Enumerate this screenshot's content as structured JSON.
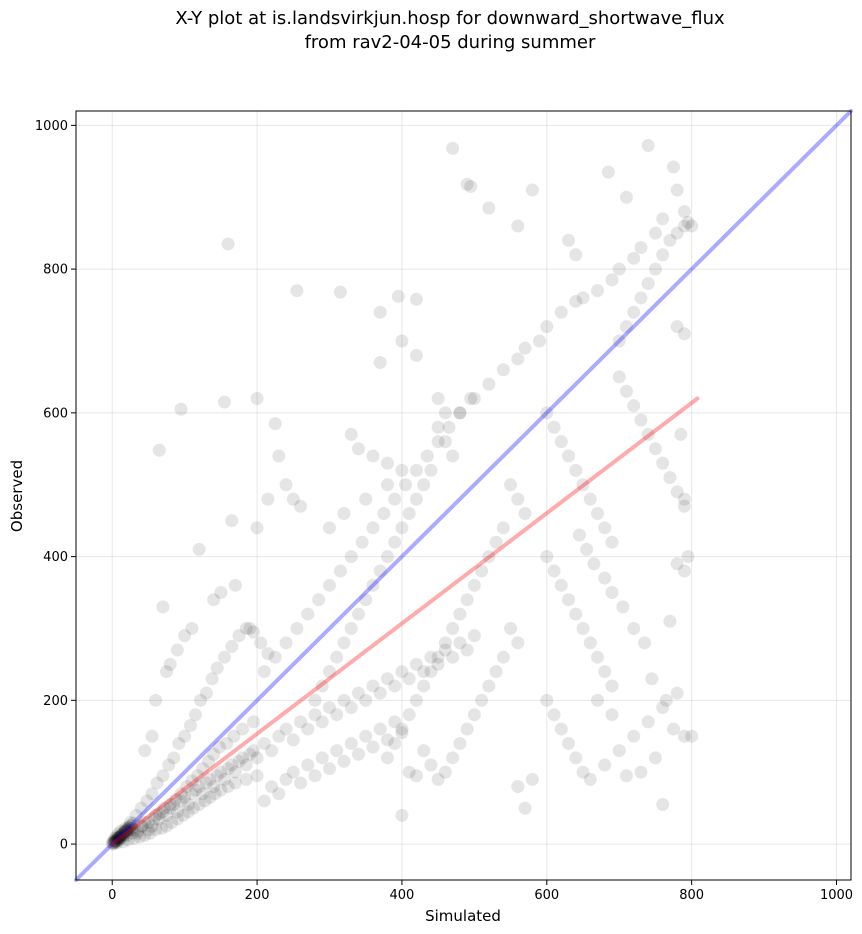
{
  "chart_data": {
    "type": "scatter",
    "title_line1": "X-Y plot at is.landsvirkjun.hosp for downward_shortwave_flux",
    "title_line2": "from rav2-04-05 during summer",
    "xlabel": "Simulated",
    "ylabel": "Observed",
    "xlim": [
      -50,
      1020
    ],
    "ylim": [
      -50,
      1020
    ],
    "xticks": [
      "0",
      "200",
      "400",
      "600",
      "800",
      "1000"
    ],
    "yticks": [
      "0",
      "200",
      "400",
      "600",
      "800",
      "1000"
    ],
    "grid": true,
    "point_color": "#000000",
    "point_opacity": 0.1,
    "reference_line": {
      "name": "1:1",
      "color": "#0000ff",
      "x": [
        -50,
        1020
      ],
      "y": [
        -50,
        1020
      ]
    },
    "regression_line": {
      "color": "#ff0000",
      "x": [
        0,
        808
      ],
      "y": [
        0,
        620
      ]
    },
    "points": [
      [
        0,
        2
      ],
      [
        1,
        0
      ],
      [
        2,
        5
      ],
      [
        3,
        1
      ],
      [
        4,
        8
      ],
      [
        5,
        3
      ],
      [
        6,
        10
      ],
      [
        7,
        2
      ],
      [
        8,
        14
      ],
      [
        10,
        6
      ],
      [
        12,
        18
      ],
      [
        14,
        9
      ],
      [
        15,
        3
      ],
      [
        18,
        22
      ],
      [
        20,
        12
      ],
      [
        22,
        6
      ],
      [
        25,
        30
      ],
      [
        28,
        15
      ],
      [
        30,
        8
      ],
      [
        33,
        40
      ],
      [
        35,
        18
      ],
      [
        38,
        10
      ],
      [
        40,
        50
      ],
      [
        42,
        25
      ],
      [
        45,
        12
      ],
      [
        48,
        60
      ],
      [
        50,
        30
      ],
      [
        52,
        15
      ],
      [
        55,
        70
      ],
      [
        58,
        35
      ],
      [
        60,
        20
      ],
      [
        62,
        85
      ],
      [
        65,
        42
      ],
      [
        68,
        22
      ],
      [
        70,
        95
      ],
      [
        72,
        50
      ],
      [
        75,
        25
      ],
      [
        78,
        110
      ],
      [
        80,
        55
      ],
      [
        82,
        30
      ],
      [
        85,
        120
      ],
      [
        88,
        62
      ],
      [
        90,
        35
      ],
      [
        92,
        140
      ],
      [
        95,
        70
      ],
      [
        98,
        40
      ],
      [
        100,
        150
      ],
      [
        103,
        80
      ],
      [
        105,
        45
      ],
      [
        108,
        165
      ],
      [
        110,
        88
      ],
      [
        112,
        50
      ],
      [
        115,
        180
      ],
      [
        118,
        95
      ],
      [
        120,
        55
      ],
      [
        122,
        200
      ],
      [
        125,
        105
      ],
      [
        128,
        60
      ],
      [
        130,
        210
      ],
      [
        133,
        115
      ],
      [
        135,
        65
      ],
      [
        138,
        230
      ],
      [
        140,
        125
      ],
      [
        142,
        70
      ],
      [
        145,
        245
      ],
      [
        148,
        135
      ],
      [
        150,
        75
      ],
      [
        155,
        260
      ],
      [
        158,
        140
      ],
      [
        160,
        80
      ],
      [
        165,
        275
      ],
      [
        168,
        150
      ],
      [
        170,
        85
      ],
      [
        175,
        290
      ],
      [
        180,
        160
      ],
      [
        185,
        90
      ],
      [
        190,
        300
      ],
      [
        195,
        170
      ],
      [
        200,
        95
      ],
      [
        30,
        20
      ],
      [
        35,
        15
      ],
      [
        40,
        25
      ],
      [
        45,
        30
      ],
      [
        50,
        20
      ],
      [
        55,
        25
      ],
      [
        60,
        40
      ],
      [
        65,
        35
      ],
      [
        70,
        45
      ],
      [
        75,
        40
      ],
      [
        80,
        50
      ],
      [
        85,
        55
      ],
      [
        90,
        45
      ],
      [
        95,
        60
      ],
      [
        100,
        65
      ],
      [
        105,
        55
      ],
      [
        110,
        70
      ],
      [
        115,
        75
      ],
      [
        120,
        80
      ],
      [
        125,
        70
      ],
      [
        130,
        85
      ],
      [
        135,
        90
      ],
      [
        140,
        80
      ],
      [
        145,
        95
      ],
      [
        150,
        100
      ],
      [
        155,
        90
      ],
      [
        160,
        105
      ],
      [
        165,
        110
      ],
      [
        170,
        100
      ],
      [
        175,
        115
      ],
      [
        180,
        120
      ],
      [
        185,
        110
      ],
      [
        190,
        125
      ],
      [
        195,
        130
      ],
      [
        200,
        120
      ],
      [
        210,
        140
      ],
      [
        220,
        130
      ],
      [
        230,
        150
      ],
      [
        240,
        160
      ],
      [
        250,
        145
      ],
      [
        260,
        170
      ],
      [
        270,
        160
      ],
      [
        280,
        180
      ],
      [
        290,
        170
      ],
      [
        300,
        190
      ],
      [
        310,
        180
      ],
      [
        320,
        200
      ],
      [
        330,
        190
      ],
      [
        340,
        210
      ],
      [
        350,
        200
      ],
      [
        360,
        220
      ],
      [
        370,
        210
      ],
      [
        380,
        230
      ],
      [
        390,
        220
      ],
      [
        400,
        240
      ],
      [
        410,
        230
      ],
      [
        420,
        250
      ],
      [
        430,
        240
      ],
      [
        440,
        260
      ],
      [
        450,
        250
      ],
      [
        460,
        270
      ],
      [
        470,
        260
      ],
      [
        480,
        280
      ],
      [
        490,
        270
      ],
      [
        500,
        290
      ],
      [
        210,
        60
      ],
      [
        220,
        80
      ],
      [
        230,
        70
      ],
      [
        240,
        90
      ],
      [
        250,
        100
      ],
      [
        260,
        85
      ],
      [
        270,
        110
      ],
      [
        280,
        95
      ],
      [
        290,
        120
      ],
      [
        300,
        105
      ],
      [
        310,
        130
      ],
      [
        320,
        115
      ],
      [
        330,
        140
      ],
      [
        340,
        125
      ],
      [
        350,
        150
      ],
      [
        360,
        135
      ],
      [
        370,
        160
      ],
      [
        380,
        145
      ],
      [
        390,
        170
      ],
      [
        400,
        155
      ],
      [
        210,
        240
      ],
      [
        225,
        260
      ],
      [
        240,
        280
      ],
      [
        255,
        300
      ],
      [
        270,
        320
      ],
      [
        285,
        340
      ],
      [
        300,
        360
      ],
      [
        315,
        380
      ],
      [
        330,
        400
      ],
      [
        345,
        420
      ],
      [
        360,
        440
      ],
      [
        375,
        460
      ],
      [
        390,
        480
      ],
      [
        405,
        500
      ],
      [
        420,
        520
      ],
      [
        435,
        540
      ],
      [
        450,
        560
      ],
      [
        465,
        580
      ],
      [
        480,
        600
      ],
      [
        495,
        620
      ],
      [
        160,
        835
      ],
      [
        95,
        605
      ],
      [
        65,
        548
      ],
      [
        155,
        615
      ],
      [
        200,
        620
      ],
      [
        255,
        770
      ],
      [
        315,
        768
      ],
      [
        395,
        762
      ],
      [
        420,
        758
      ],
      [
        470,
        968
      ],
      [
        490,
        918
      ],
      [
        495,
        915
      ],
      [
        520,
        885
      ],
      [
        580,
        910
      ],
      [
        560,
        860
      ],
      [
        630,
        840
      ],
      [
        640,
        820
      ],
      [
        685,
        935
      ],
      [
        710,
        900
      ],
      [
        740,
        972
      ],
      [
        775,
        942
      ],
      [
        780,
        910
      ],
      [
        790,
        880
      ],
      [
        795,
        865
      ],
      [
        800,
        860
      ],
      [
        760,
        870
      ],
      [
        750,
        850
      ],
      [
        730,
        830
      ],
      [
        720,
        815
      ],
      [
        700,
        800
      ],
      [
        690,
        785
      ],
      [
        670,
        770
      ],
      [
        650,
        760
      ],
      [
        640,
        755
      ],
      [
        620,
        740
      ],
      [
        600,
        720
      ],
      [
        590,
        700
      ],
      [
        570,
        690
      ],
      [
        560,
        675
      ],
      [
        540,
        660
      ],
      [
        520,
        640
      ],
      [
        500,
        620
      ],
      [
        480,
        600
      ],
      [
        700,
        700
      ],
      [
        710,
        720
      ],
      [
        720,
        740
      ],
      [
        730,
        760
      ],
      [
        740,
        780
      ],
      [
        750,
        800
      ],
      [
        760,
        820
      ],
      [
        770,
        840
      ],
      [
        780,
        850
      ],
      [
        790,
        860
      ],
      [
        700,
        650
      ],
      [
        710,
        630
      ],
      [
        720,
        610
      ],
      [
        730,
        590
      ],
      [
        740,
        570
      ],
      [
        750,
        550
      ],
      [
        760,
        530
      ],
      [
        770,
        510
      ],
      [
        780,
        490
      ],
      [
        790,
        470
      ],
      [
        600,
        600
      ],
      [
        610,
        580
      ],
      [
        620,
        560
      ],
      [
        630,
        540
      ],
      [
        640,
        520
      ],
      [
        650,
        500
      ],
      [
        660,
        480
      ],
      [
        670,
        460
      ],
      [
        680,
        440
      ],
      [
        690,
        420
      ],
      [
        600,
        400
      ],
      [
        610,
        380
      ],
      [
        620,
        360
      ],
      [
        630,
        340
      ],
      [
        640,
        320
      ],
      [
        650,
        300
      ],
      [
        660,
        280
      ],
      [
        670,
        260
      ],
      [
        680,
        240
      ],
      [
        690,
        220
      ],
      [
        600,
        200
      ],
      [
        610,
        180
      ],
      [
        620,
        160
      ],
      [
        630,
        140
      ],
      [
        640,
        120
      ],
      [
        650,
        100
      ],
      [
        660,
        90
      ],
      [
        680,
        110
      ],
      [
        700,
        130
      ],
      [
        720,
        150
      ],
      [
        740,
        170
      ],
      [
        760,
        190
      ],
      [
        780,
        210
      ],
      [
        800,
        150
      ],
      [
        760,
        55
      ],
      [
        750,
        120
      ],
      [
        730,
        100
      ],
      [
        710,
        95
      ],
      [
        690,
        180
      ],
      [
        670,
        200
      ],
      [
        550,
        500
      ],
      [
        560,
        480
      ],
      [
        570,
        460
      ],
      [
        540,
        440
      ],
      [
        530,
        420
      ],
      [
        520,
        400
      ],
      [
        510,
        380
      ],
      [
        500,
        360
      ],
      [
        490,
        340
      ],
      [
        480,
        320
      ],
      [
        470,
        300
      ],
      [
        460,
        280
      ],
      [
        450,
        260
      ],
      [
        440,
        240
      ],
      [
        430,
        220
      ],
      [
        420,
        200
      ],
      [
        410,
        180
      ],
      [
        400,
        160
      ],
      [
        390,
        140
      ],
      [
        380,
        120
      ],
      [
        550,
        300
      ],
      [
        560,
        280
      ],
      [
        540,
        260
      ],
      [
        530,
        240
      ],
      [
        520,
        220
      ],
      [
        510,
        200
      ],
      [
        500,
        180
      ],
      [
        490,
        160
      ],
      [
        480,
        140
      ],
      [
        470,
        120
      ],
      [
        460,
        100
      ],
      [
        450,
        90
      ],
      [
        440,
        110
      ],
      [
        430,
        130
      ],
      [
        420,
        95
      ],
      [
        410,
        100
      ],
      [
        400,
        40
      ],
      [
        570,
        50
      ],
      [
        580,
        90
      ],
      [
        560,
        80
      ],
      [
        450,
        580
      ],
      [
        460,
        560
      ],
      [
        470,
        540
      ],
      [
        440,
        520
      ],
      [
        430,
        500
      ],
      [
        420,
        480
      ],
      [
        410,
        460
      ],
      [
        400,
        440
      ],
      [
        390,
        420
      ],
      [
        380,
        400
      ],
      [
        370,
        380
      ],
      [
        360,
        360
      ],
      [
        350,
        340
      ],
      [
        340,
        320
      ],
      [
        330,
        300
      ],
      [
        320,
        280
      ],
      [
        310,
        260
      ],
      [
        300,
        240
      ],
      [
        290,
        220
      ],
      [
        280,
        200
      ],
      [
        330,
        570
      ],
      [
        340,
        550
      ],
      [
        360,
        540
      ],
      [
        380,
        530
      ],
      [
        400,
        520
      ],
      [
        370,
        740
      ],
      [
        370,
        670
      ],
      [
        400,
        700
      ],
      [
        420,
        680
      ],
      [
        450,
        620
      ],
      [
        460,
        600
      ],
      [
        380,
        500
      ],
      [
        350,
        480
      ],
      [
        320,
        460
      ],
      [
        300,
        440
      ],
      [
        250,
        480
      ],
      [
        240,
        500
      ],
      [
        230,
        540
      ],
      [
        225,
        585
      ],
      [
        260,
        470
      ],
      [
        120,
        410
      ],
      [
        110,
        300
      ],
      [
        100,
        290
      ],
      [
        90,
        270
      ],
      [
        80,
        250
      ],
      [
        70,
        330
      ],
      [
        75,
        240
      ],
      [
        60,
        200
      ],
      [
        55,
        150
      ],
      [
        45,
        130
      ],
      [
        140,
        340
      ],
      [
        150,
        350
      ],
      [
        170,
        360
      ],
      [
        185,
        300
      ],
      [
        195,
        295
      ],
      [
        205,
        280
      ],
      [
        215,
        265
      ],
      [
        165,
        450
      ],
      [
        215,
        480
      ],
      [
        200,
        440
      ],
      [
        790,
        380
      ],
      [
        795,
        400
      ],
      [
        780,
        720
      ],
      [
        790,
        710
      ],
      [
        785,
        570
      ],
      [
        790,
        480
      ],
      [
        780,
        390
      ],
      [
        770,
        310
      ],
      [
        790,
        150
      ],
      [
        775,
        160
      ],
      [
        765,
        200
      ],
      [
        745,
        230
      ],
      [
        735,
        280
      ],
      [
        720,
        300
      ],
      [
        705,
        330
      ],
      [
        690,
        350
      ],
      [
        680,
        370
      ],
      [
        665,
        390
      ],
      [
        655,
        410
      ],
      [
        645,
        430
      ],
      [
        5,
        5
      ],
      [
        8,
        8
      ],
      [
        10,
        10
      ],
      [
        12,
        12
      ],
      [
        15,
        15
      ],
      [
        18,
        18
      ],
      [
        20,
        20
      ],
      [
        22,
        22
      ],
      [
        25,
        25
      ],
      [
        6,
        4
      ],
      [
        9,
        7
      ],
      [
        11,
        9
      ],
      [
        13,
        11
      ],
      [
        16,
        13
      ],
      [
        19,
        16
      ],
      [
        21,
        18
      ],
      [
        24,
        20
      ],
      [
        27,
        22
      ],
      [
        3,
        3
      ],
      [
        2,
        2
      ],
      [
        4,
        4
      ],
      [
        7,
        7
      ],
      [
        9,
        9
      ],
      [
        11,
        11
      ],
      [
        14,
        14
      ],
      [
        17,
        17
      ],
      [
        19,
        19
      ],
      [
        23,
        23
      ],
      [
        26,
        26
      ],
      [
        29,
        29
      ]
    ]
  }
}
